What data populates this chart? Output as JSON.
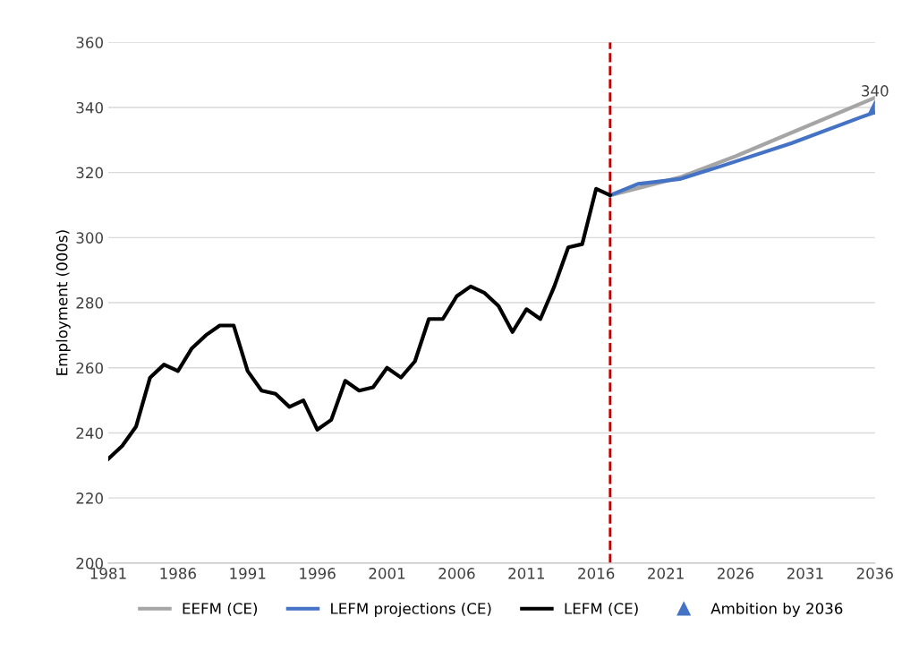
{
  "chart_data": {
    "type": "line",
    "ylabel": "Employment (000s)",
    "xlim": [
      1981,
      2036
    ],
    "xticks": [
      1981,
      1986,
      1991,
      1996,
      2001,
      2006,
      2011,
      2016,
      2021,
      2026,
      2031,
      2036
    ],
    "ylim": [
      200,
      360
    ],
    "yticks": [
      200,
      220,
      240,
      260,
      280,
      300,
      320,
      340,
      360
    ],
    "grid": "y",
    "legend": "bottom",
    "ref_lines": [
      {
        "axis": "x",
        "value": 2017,
        "color": "#c00000",
        "line_style": "dashed"
      }
    ],
    "series": [
      {
        "name": "EEFM (CE)",
        "color": "#a5a5a5",
        "x": [
          2017,
          2022,
          2026,
          2031,
          2036
        ],
        "values": [
          313,
          318.5,
          325,
          334,
          343
        ]
      },
      {
        "name": "LEFM projections (CE)",
        "color": "#4472c4",
        "x": [
          2017,
          2019,
          2020,
          2022,
          2025,
          2030,
          2035,
          2036
        ],
        "values": [
          313,
          316.5,
          317,
          318,
          322,
          329,
          337,
          338.5
        ]
      },
      {
        "name": "LEFM (CE)",
        "color": "#000000",
        "x": [
          1981,
          1982,
          1983,
          1984,
          1985,
          1986,
          1987,
          1988,
          1989,
          1990,
          1991,
          1992,
          1993,
          1994,
          1995,
          1996,
          1997,
          1998,
          1999,
          2000,
          2001,
          2002,
          2003,
          2004,
          2005,
          2006,
          2007,
          2008,
          2009,
          2010,
          2011,
          2012,
          2013,
          2014,
          2015,
          2016,
          2017
        ],
        "values": [
          232,
          236,
          242,
          257,
          261,
          259,
          266,
          270,
          273,
          273,
          259,
          253,
          252,
          248,
          250,
          241,
          244,
          256,
          253,
          254,
          260,
          257,
          262,
          275,
          275,
          282,
          285,
          283,
          279,
          271,
          278,
          275,
          285,
          297,
          298,
          315,
          313
        ]
      },
      {
        "name": "Ambition by 2036",
        "type": "scatter",
        "marker": "triangle",
        "color": "#4472c4",
        "x": [
          2036
        ],
        "values": [
          340
        ],
        "data_labels": true
      }
    ]
  }
}
